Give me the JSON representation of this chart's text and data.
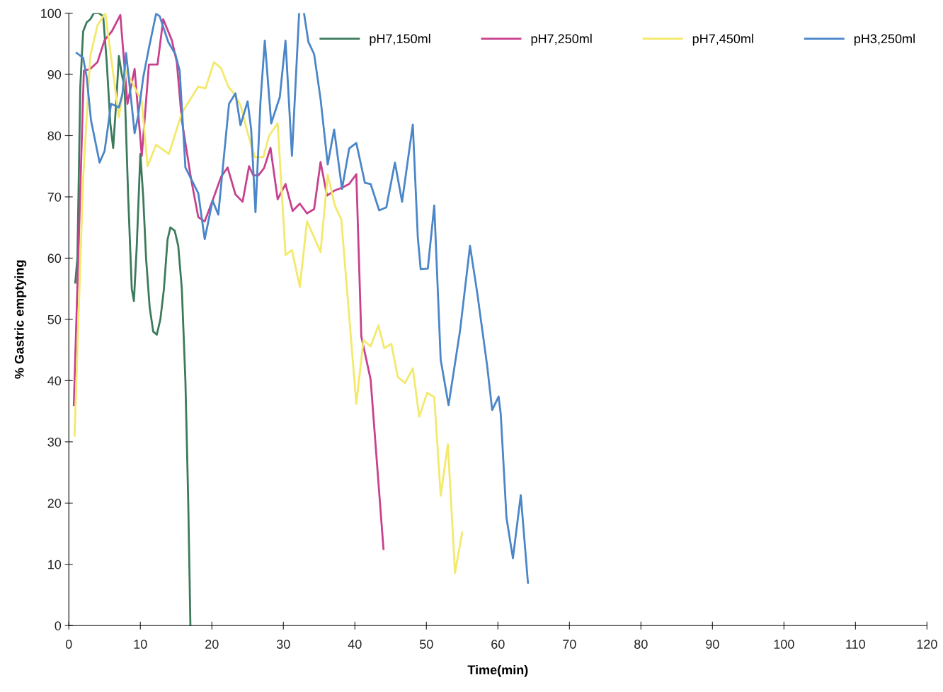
{
  "chart_data": {
    "type": "line",
    "xlabel": "Time(min)",
    "ylabel": "% Gastric emptying",
    "xlim": [
      0,
      120
    ],
    "xticks": [
      0,
      10,
      20,
      30,
      40,
      50,
      60,
      70,
      80,
      90,
      100,
      110,
      120
    ],
    "ylim": [
      0,
      100
    ],
    "yticks": [
      0,
      10,
      20,
      30,
      40,
      50,
      60,
      70,
      80,
      90,
      100
    ],
    "grid": false,
    "legend": "top right",
    "marker": "none",
    "line_style": "solid",
    "series": [
      {
        "name": "pH7,150ml",
        "color": "#3d7a5c",
        "x": [
          0.9,
          1.2,
          1.6,
          2.0,
          2.5,
          3.0,
          3.5,
          4.2,
          4.8,
          5.3,
          5.8,
          6.2,
          6.6,
          7.0,
          7.4,
          7.8,
          8.3,
          8.8,
          9.1,
          9.5,
          10.0,
          10.4,
          10.8,
          11.3,
          11.8,
          12.3,
          12.8,
          13.3,
          13.8,
          14.2,
          14.8,
          15.3,
          15.8,
          16.3,
          16.7,
          17.0
        ],
        "values": [
          56,
          60,
          88,
          97,
          98.5,
          99,
          100,
          100,
          99.5,
          92,
          82,
          78,
          85,
          93,
          90,
          88,
          70,
          55,
          53,
          62,
          77,
          70,
          60,
          52,
          48,
          47.5,
          50,
          55,
          63,
          65,
          64.5,
          62,
          55,
          40,
          20,
          0
        ]
      },
      {
        "name": "pH7,250ml",
        "color": "#c8418e",
        "x": [
          0.7,
          2.1,
          3.0,
          4.0,
          5.0,
          6.0,
          7.2,
          8.2,
          9.2,
          10.2,
          11.2,
          12.4,
          13.2,
          14.4,
          15.1,
          15.8,
          17.1,
          18.1,
          19.0,
          20.1,
          21.3,
          22.2,
          23.3,
          24.3,
          25.2,
          25.8,
          26.5,
          27.3,
          28.2,
          29.2,
          30.3,
          31.3,
          32.3,
          33.3,
          34.3,
          35.2,
          36.1,
          37.1,
          38.2,
          39.2,
          40.2,
          40.9,
          42.2,
          44.0
        ],
        "values": [
          36,
          90.6,
          90.9,
          92,
          95.6,
          97,
          99.7,
          85.2,
          90.9,
          76.7,
          91.6,
          91.6,
          99,
          95.6,
          92,
          82.5,
          72.9,
          66.7,
          66,
          69.4,
          73.3,
          74.8,
          70.4,
          69.2,
          75,
          73.5,
          73.5,
          74.7,
          78,
          69.6,
          72.1,
          67.7,
          68.9,
          67.3,
          68,
          75.7,
          70.2,
          71,
          71.5,
          72.1,
          73.7,
          47.2,
          40.2,
          12.5
        ]
      },
      {
        "name": "pH7,450ml",
        "color": "#f3e96a",
        "x": [
          0.8,
          2.0,
          3.0,
          4.0,
          5.1,
          7.0,
          8.0,
          10.2,
          11.0,
          12.2,
          14.0,
          15.8,
          18.1,
          19.1,
          20.3,
          21.3,
          22.3,
          23.0,
          24.0,
          25.0,
          26.0,
          27.2,
          28.0,
          29.2,
          30.3,
          31.2,
          32.3,
          33.3,
          35.2,
          36.2,
          37.2,
          38.1,
          40.2,
          41.2,
          42.2,
          43.3,
          44.1,
          45.1,
          46.0,
          47.0,
          48.1,
          49.0,
          50.1,
          51.1,
          52.0,
          53.0,
          54.0,
          55.0
        ],
        "values": [
          31,
          73,
          93,
          98,
          100,
          83,
          90.6,
          85.6,
          75,
          78.5,
          77,
          83.7,
          88,
          87.7,
          92,
          91,
          88,
          87,
          85,
          80.5,
          76.5,
          76.5,
          80,
          82,
          60.5,
          61.3,
          55.3,
          66,
          61,
          73.6,
          68.6,
          66.3,
          36.2,
          46.6,
          45.6,
          49,
          45.3,
          46,
          40.6,
          39.6,
          42,
          34.1,
          38,
          37.3,
          21.2,
          29.6,
          8.6,
          15.2
        ]
      },
      {
        "name": "pH3,250ml",
        "color": "#4a86c8",
        "x": [
          1.1,
          2.0,
          2.5,
          3.1,
          4.3,
          5.0,
          5.5,
          5.9,
          7.0,
          7.5,
          8.0,
          8.7,
          9.2,
          9.7,
          10.4,
          11.2,
          12.2,
          12.7,
          13.9,
          14.9,
          15.5,
          16.3,
          18.1,
          19.0,
          20.1,
          20.9,
          22.4,
          23.3,
          24.0,
          25.0,
          25.5,
          26.1,
          26.8,
          27.4,
          28.3,
          29.5,
          30.3,
          31.2,
          32.2,
          32.5,
          32.9,
          33.5,
          34.3,
          35.2,
          36.2,
          37.1,
          38.2,
          39.2,
          40.2,
          41.4,
          42.2,
          43.4,
          44.4,
          45.6,
          46.6,
          48.1,
          48.8,
          49.2,
          50.2,
          51.1,
          52.0,
          53.1,
          54.7,
          56.1,
          57.1,
          58.5,
          59.2,
          60.1,
          60.4,
          61.2,
          62.1,
          63.2,
          64.2
        ],
        "values": [
          93.5,
          92.7,
          89.5,
          82.5,
          75.6,
          77.5,
          81.7,
          85.2,
          84.6,
          86.8,
          93.5,
          86,
          80.4,
          83.3,
          89.5,
          94.3,
          99.9,
          99.5,
          95.3,
          93.3,
          90.6,
          74.8,
          70.6,
          63.1,
          69.4,
          67.1,
          85.2,
          86.9,
          81.7,
          85.6,
          81,
          67.5,
          85.6,
          95.5,
          82,
          86.3,
          95.5,
          76.7,
          99.9,
          null,
          99.9,
          95.3,
          93.3,
          86,
          75.3,
          81,
          71.3,
          77.9,
          78.8,
          72.3,
          72.1,
          67.8,
          68.3,
          75.6,
          69.2,
          81.8,
          63.4,
          58.2,
          58.3,
          68.6,
          43.4,
          36,
          48.1,
          62,
          54.4,
          42.4,
          35.2,
          37.4,
          34.5,
          17.6,
          11,
          21.3,
          7
        ]
      }
    ]
  }
}
